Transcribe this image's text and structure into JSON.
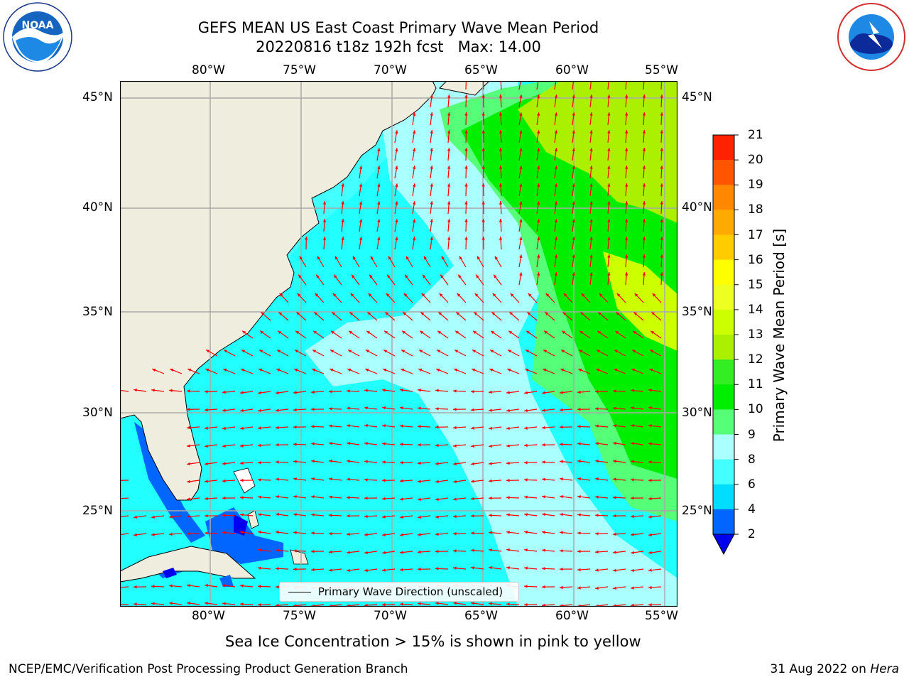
{
  "title_line1": "GEFS MEAN US East Coast Primary Wave Mean Period",
  "title_line2": "20220816 t18z 192h fcst   Max: 14.00",
  "lon_labels": [
    "80°W",
    "75°W",
    "70°W",
    "65°W",
    "60°W",
    "55°W"
  ],
  "lat_labels": [
    "45°N",
    "40°N",
    "35°N",
    "30°N",
    "25°N"
  ],
  "legend_label": "Primary Wave Direction (unscaled)",
  "subtitle": "Sea Ice Concentration > 15% is shown in pink to yellow",
  "footer_left": "NCEP/EMC/Verification Post Processing Product Generation Branch",
  "footer_date": "31 Aug 2022 on ",
  "footer_host": "Hera",
  "colorbar": {
    "label": "Primary Wave Mean Period [s]",
    "ticks": [
      "2",
      "4",
      "6",
      "8",
      "9",
      "10",
      "11",
      "12",
      "13",
      "14",
      "15",
      "16",
      "17",
      "18",
      "19",
      "20",
      "21"
    ],
    "colors": [
      "#0066ff",
      "#00ddff",
      "#44ffff",
      "#aaffff",
      "#55ff77",
      "#00ee00",
      "#33ee22",
      "#aaf000",
      "#ccff00",
      "#eeff22",
      "#ffff00",
      "#ffcc00",
      "#ffaa00",
      "#ff8800",
      "#ff5500",
      "#ff2200"
    ],
    "extend_color": "#0000ee"
  },
  "colors": {
    "land": "#efedde",
    "ocean_base": "#44ffff",
    "arrow": "#ff0000",
    "grid": "#aaaaaa"
  },
  "logos": {
    "left": "noaa-logo",
    "right": "nws-logo"
  }
}
